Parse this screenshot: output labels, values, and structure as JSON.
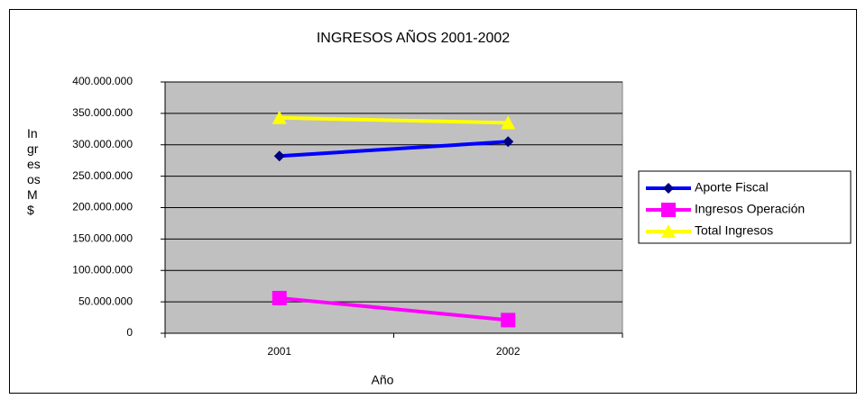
{
  "chart_data": {
    "type": "line",
    "title": "INGRESOS AÑOS 2001-2002",
    "x_label": "Año",
    "y_label": "Ingresos M$",
    "categories": [
      "2001",
      "2002"
    ],
    "series": [
      {
        "name": "Aporte Fiscal",
        "color": "#0000ff",
        "marker_color": "#000080",
        "marker": "diamond",
        "values": [
          282000000,
          305000000
        ]
      },
      {
        "name": "Ingresos Operación",
        "color": "#ff00ff",
        "marker_color": "#ff00ff",
        "marker": "square",
        "values": [
          56000000,
          21000000
        ]
      },
      {
        "name": "Total Ingresos",
        "color": "#ffff00",
        "marker_color": "#ffff00",
        "marker": "triangle",
        "values": [
          343000000,
          335000000
        ]
      }
    ],
    "ylim": [
      0,
      400000000
    ],
    "yticks": [
      0,
      {
        "value": 50000000,
        "label": "50.000.000"
      },
      {
        "value": 100000000,
        "label": "100.000.000"
      },
      {
        "value": 150000000,
        "label": "150.000.000"
      },
      {
        "value": 200000000,
        "label": "200.000.000"
      },
      {
        "value": 250000000,
        "label": "250.000.000"
      },
      {
        "value": 300000000,
        "label": "300.000.000"
      },
      {
        "value": 350000000,
        "label": "350.000.000"
      },
      {
        "value": 400000000,
        "label": "400.000.000"
      }
    ],
    "grid": true,
    "plot_background": "#c0c0c0",
    "legend": "right"
  }
}
